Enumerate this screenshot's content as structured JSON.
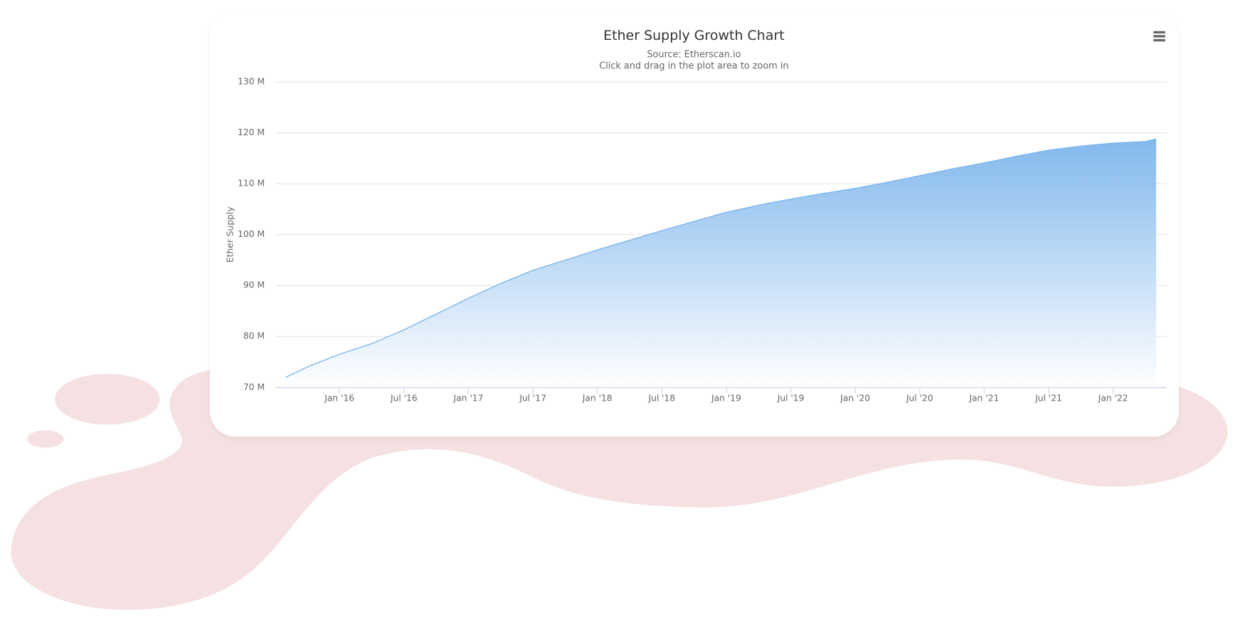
{
  "chart_data": {
    "type": "area",
    "title": "Ether Supply Growth Chart",
    "subtitle": [
      "Source: Etherscan.io",
      "Click and drag in the plot area to zoom in"
    ],
    "y_label": "Ether Supply",
    "color": "#7cb5ec",
    "grid": true,
    "x": [
      "2015-08",
      "2015-10",
      "2016-01",
      "2016-04",
      "2016-07",
      "2016-10",
      "2017-01",
      "2017-04",
      "2017-07",
      "2017-10",
      "2018-01",
      "2018-04",
      "2018-07",
      "2018-10",
      "2019-01",
      "2019-04",
      "2019-07",
      "2019-10",
      "2020-01",
      "2020-04",
      "2020-07",
      "2020-10",
      "2021-01",
      "2021-04",
      "2021-07",
      "2021-10",
      "2022-01",
      "2022-04",
      "2022-05"
    ],
    "values": [
      72.0,
      74.0,
      76.5,
      78.6,
      81.3,
      84.4,
      87.5,
      90.4,
      93.0,
      95.0,
      97.0,
      98.9,
      100.8,
      102.6,
      104.4,
      105.8,
      107.0,
      108.1,
      109.1,
      110.3,
      111.6,
      112.9,
      114.1,
      115.4,
      116.6,
      117.4,
      118.0,
      118.3,
      118.8
    ],
    "xlim": [
      "2015-07",
      "2022-06"
    ],
    "xticks": [
      {
        "value": "2016-01",
        "label": "Jan '16"
      },
      {
        "value": "2016-07",
        "label": "Jul '16"
      },
      {
        "value": "2017-01",
        "label": "Jan '17"
      },
      {
        "value": "2017-07",
        "label": "Jul '17"
      },
      {
        "value": "2018-01",
        "label": "Jan '18"
      },
      {
        "value": "2018-07",
        "label": "Jul '18"
      },
      {
        "value": "2019-01",
        "label": "Jan '19"
      },
      {
        "value": "2019-07",
        "label": "Jul '19"
      },
      {
        "value": "2020-01",
        "label": "Jan '20"
      },
      {
        "value": "2020-07",
        "label": "Jul '20"
      },
      {
        "value": "2021-01",
        "label": "Jan '21"
      },
      {
        "value": "2021-07",
        "label": "Jul '21"
      },
      {
        "value": "2022-01",
        "label": "Jan '22"
      }
    ],
    "ylim": [
      70,
      130
    ],
    "yticks": [
      {
        "value": 70,
        "label": "70 M"
      },
      {
        "value": 80,
        "label": "80 M"
      },
      {
        "value": 90,
        "label": "90 M"
      },
      {
        "value": 100,
        "label": "100 M"
      },
      {
        "value": 110,
        "label": "110 M"
      },
      {
        "value": 120,
        "label": "120 M"
      },
      {
        "value": 130,
        "label": "130 M"
      }
    ]
  }
}
